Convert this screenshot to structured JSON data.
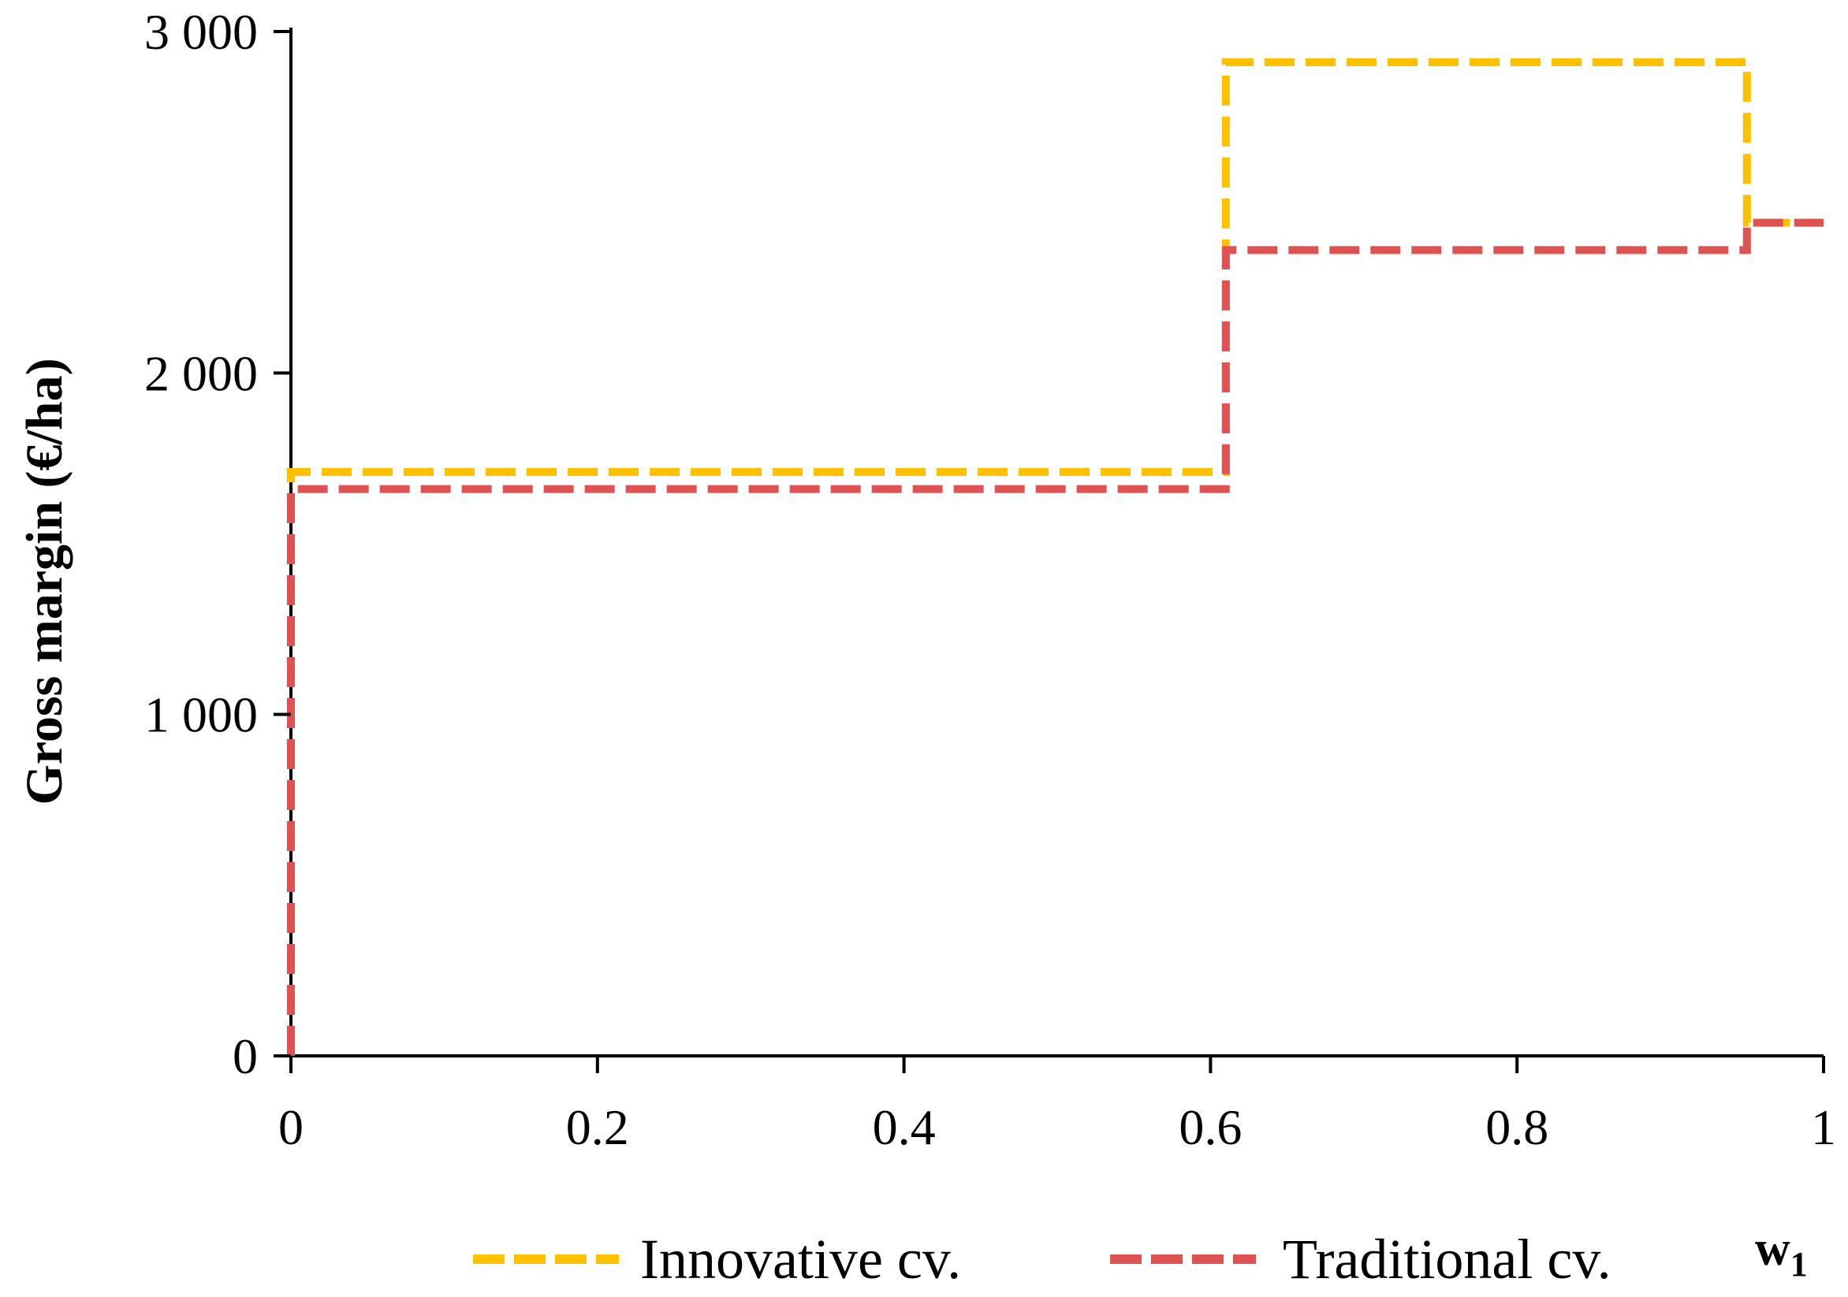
{
  "chart_data": {
    "type": "line",
    "step": true,
    "title": "",
    "xlabel": "w",
    "xlabel_subscript": "1",
    "ylabel": "Gross margin (€/ha)",
    "xlim": [
      0,
      1
    ],
    "ylim": [
      0,
      3000
    ],
    "x_ticks": [
      0,
      0.2,
      0.4,
      0.6,
      0.8,
      1
    ],
    "x_tick_labels": [
      "0",
      "0.2",
      "0.4",
      "0.6",
      "0.8",
      "1"
    ],
    "y_ticks": [
      0,
      1000,
      2000,
      3000
    ],
    "y_tick_labels": [
      "0",
      "1 000",
      "2 000",
      "3 000"
    ],
    "grid": false,
    "legend_position": "bottom",
    "line_style": "dashed",
    "series": [
      {
        "name": "Innovative cv.",
        "color": "#FFC000",
        "x": [
          0,
          0,
          0.61,
          0.61,
          0.95,
          0.95,
          1
        ],
        "y": [
          0,
          1710,
          1710,
          2910,
          2910,
          2440,
          2440
        ]
      },
      {
        "name": "Traditional cv.",
        "color": "#DE5252",
        "x": [
          0,
          0,
          0.61,
          0.61,
          0.95,
          0.95,
          1
        ],
        "y": [
          0,
          1660,
          1660,
          2360,
          2360,
          2440,
          2440
        ]
      }
    ]
  }
}
